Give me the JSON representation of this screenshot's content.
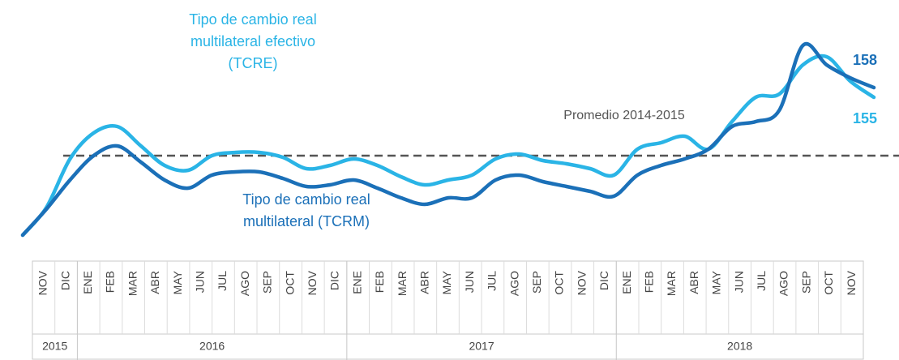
{
  "chart_data": {
    "type": "line",
    "categories": [
      "NOV",
      "DIC",
      "ENE",
      "FEB",
      "MAR",
      "ABR",
      "MAY",
      "JUN",
      "JUL",
      "AGO",
      "SEP",
      "OCT",
      "NOV",
      "DIC",
      "ENE",
      "FEB",
      "MAR",
      "ABR",
      "MAY",
      "JUN",
      "JUL",
      "AGO",
      "SEP",
      "OCT",
      "NOV",
      "DIC",
      "ENE",
      "FEB",
      "MAR",
      "ABR",
      "MAY",
      "JUN",
      "JUL",
      "AGO",
      "SEP",
      "OCT",
      "NOV"
    ],
    "years": [
      {
        "label": "2015",
        "count": 2
      },
      {
        "label": "2016",
        "count": 12
      },
      {
        "label": "2017",
        "count": 12
      },
      {
        "label": "2018",
        "count": 11
      }
    ],
    "series": [
      {
        "name": "Tipo de cambio real multilateral (TCRM)",
        "color": "#1b70b8",
        "values": [
          112.5,
          120.5,
          129.5,
          137,
          140,
          135,
          129.5,
          127,
          131,
          132,
          132,
          130,
          127.5,
          128,
          129.5,
          127,
          124,
          122,
          124,
          124,
          129.5,
          131,
          129,
          127.5,
          126,
          124.5,
          131,
          134,
          136,
          139,
          146,
          147.5,
          151,
          171,
          165,
          161,
          158
        ]
      },
      {
        "name": "Tipo de cambio real multilateral efectivo (TCRE)",
        "color": "#2ab4e6",
        "values": [
          112.5,
          121,
          136,
          144,
          146,
          140,
          134,
          132.5,
          137,
          138,
          138,
          136.5,
          133,
          134,
          136,
          134,
          130.5,
          128,
          129.5,
          131,
          136,
          137.5,
          135.5,
          134.5,
          133,
          131,
          139,
          141,
          143,
          139,
          147.5,
          155,
          156,
          165,
          167.5,
          160,
          155
        ]
      }
    ],
    "reference_line": {
      "label": "Promedio 2014-2015",
      "value": 137,
      "color": "#555555"
    },
    "ylim": [
      100,
      175
    ]
  }
}
